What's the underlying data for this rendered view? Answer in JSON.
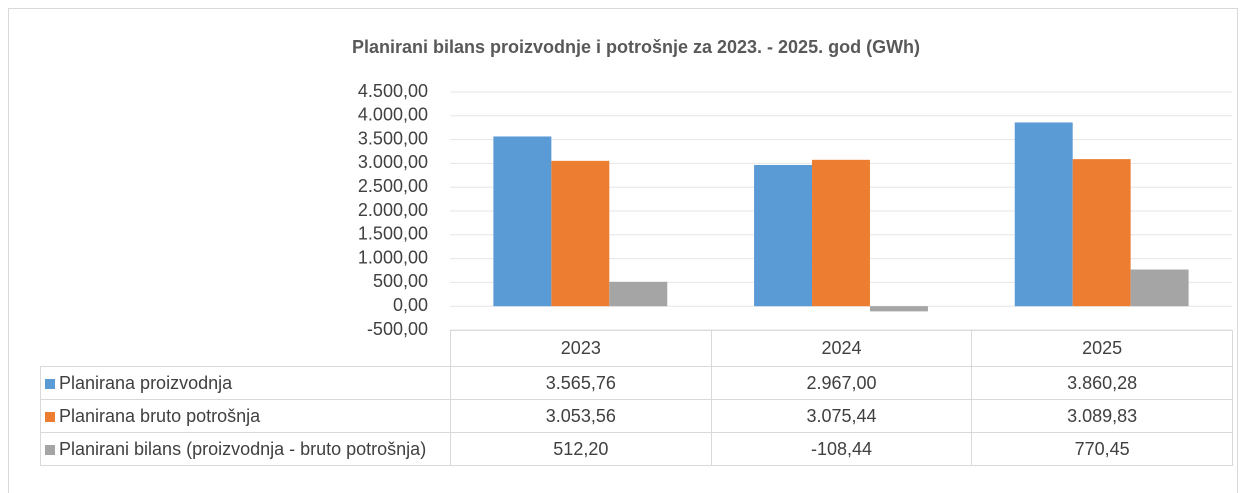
{
  "chart_data": {
    "type": "bar",
    "title": "Planirani bilans proizvodnje i potrošnje za 2023. - 2025. god (GWh)",
    "categories": [
      "2023",
      "2024",
      "2025"
    ],
    "series": [
      {
        "name": "Planirana proizvodnja",
        "color": "#5b9bd5",
        "values": [
          3565.76,
          2967.0,
          3860.28
        ],
        "value_labels": [
          "3.565,76",
          "2.967,00",
          "3.860,28"
        ]
      },
      {
        "name": "Planirana bruto potrošnja",
        "color": "#ed7d31",
        "values": [
          3053.56,
          3075.44,
          3089.83
        ],
        "value_labels": [
          "3.053,56",
          "3.075,44",
          "3.089,83"
        ]
      },
      {
        "name": "Planirani bilans (proizvodnja - bruto potrošnja)",
        "color": "#a5a5a5",
        "values": [
          512.2,
          -108.44,
          770.45
        ],
        "value_labels": [
          "512,20",
          "-108,44",
          "770,45"
        ]
      }
    ],
    "ylim": [
      -500,
      4500
    ],
    "yticks": [
      {
        "value": -500,
        "label": "-500,00"
      },
      {
        "value": 0,
        "label": "0,00"
      },
      {
        "value": 500,
        "label": "500,00"
      },
      {
        "value": 1000,
        "label": "1.000,00"
      },
      {
        "value": 1500,
        "label": "1.500,00"
      },
      {
        "value": 2000,
        "label": "2.000,00"
      },
      {
        "value": 2500,
        "label": "2.500,00"
      },
      {
        "value": 3000,
        "label": "3.000,00"
      },
      {
        "value": 3500,
        "label": "3.500,00"
      },
      {
        "value": 4000,
        "label": "4.000,00"
      },
      {
        "value": 4500,
        "label": "4.500,00"
      }
    ],
    "grid": true
  }
}
